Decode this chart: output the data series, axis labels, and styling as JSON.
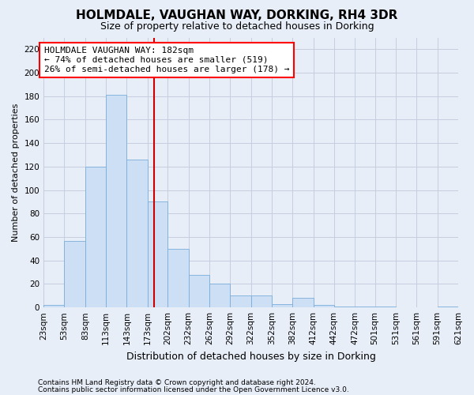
{
  "title": "HOLMDALE, VAUGHAN WAY, DORKING, RH4 3DR",
  "subtitle": "Size of property relative to detached houses in Dorking",
  "xlabel": "Distribution of detached houses by size in Dorking",
  "ylabel": "Number of detached properties",
  "footnote1": "Contains HM Land Registry data © Crown copyright and database right 2024.",
  "footnote2": "Contains public sector information licensed under the Open Government Licence v3.0.",
  "annotation_line1": "HOLMDALE VAUGHAN WAY: 182sqm",
  "annotation_line2": "← 74% of detached houses are smaller (519)",
  "annotation_line3": "26% of semi-detached houses are larger (178) →",
  "bar_color": "#ccdff5",
  "bar_edge_color": "#7aadda",
  "grid_color": "#c5cedf",
  "vline_color": "#cc0000",
  "vline_x": 182,
  "bin_edges": [
    23,
    53,
    83,
    113,
    143,
    173,
    202,
    232,
    262,
    292,
    322,
    352,
    382,
    412,
    442,
    472,
    501,
    531,
    561,
    591,
    621
  ],
  "heights": [
    2,
    57,
    120,
    181,
    126,
    90,
    50,
    28,
    20,
    10,
    10,
    3,
    8,
    2,
    1,
    1,
    1,
    0,
    0,
    1
  ],
  "ylim": [
    0,
    230
  ],
  "yticks": [
    0,
    20,
    40,
    60,
    80,
    100,
    120,
    140,
    160,
    180,
    200,
    220
  ],
  "background_color": "#e8eef8",
  "ax_background_color": "#e8eef8",
  "title_fontsize": 11,
  "subtitle_fontsize": 9,
  "annotation_fontsize": 8,
  "ylabel_fontsize": 8,
  "xlabel_fontsize": 9,
  "tick_fontsize": 7.5,
  "footnote_fontsize": 6.5
}
